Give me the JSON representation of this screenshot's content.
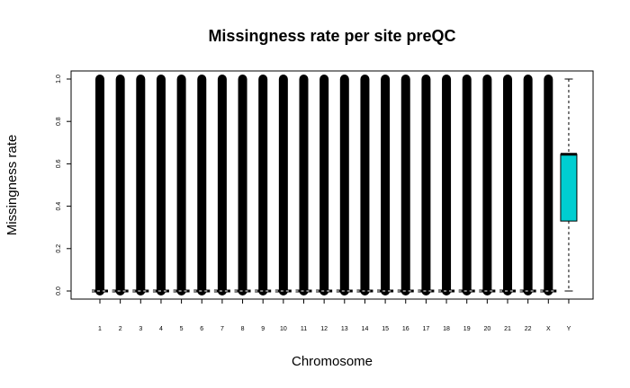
{
  "chart_data": {
    "type": "boxplot",
    "title": "Missingness rate per site preQC",
    "xlabel": "Chromosome",
    "ylabel": "Missingness rate",
    "categories": [
      "1",
      "2",
      "3",
      "4",
      "5",
      "6",
      "7",
      "8",
      "9",
      "10",
      "11",
      "12",
      "13",
      "14",
      "15",
      "16",
      "17",
      "18",
      "19",
      "20",
      "21",
      "22",
      "X",
      "Y"
    ],
    "yticks": [
      "0.0",
      "0.2",
      "0.4",
      "0.6",
      "0.8",
      "1.0"
    ],
    "ylim": [
      0,
      1
    ],
    "grid": false,
    "legend": "none",
    "colors": {
      "box_fill": "#00CED1",
      "points": "#000000",
      "axis": "#000000"
    },
    "boxes": [
      {
        "chrom": "1",
        "min": 0.0,
        "q1": 0.0,
        "median": 0.0,
        "q3": 0.0,
        "max": 0.0,
        "outliers_from": 0.0,
        "outliers_to": 1.0
      },
      {
        "chrom": "2",
        "min": 0.0,
        "q1": 0.0,
        "median": 0.0,
        "q3": 0.0,
        "max": 0.0,
        "outliers_from": 0.0,
        "outliers_to": 1.0
      },
      {
        "chrom": "3",
        "min": 0.0,
        "q1": 0.0,
        "median": 0.0,
        "q3": 0.0,
        "max": 0.0,
        "outliers_from": 0.0,
        "outliers_to": 1.0
      },
      {
        "chrom": "4",
        "min": 0.0,
        "q1": 0.0,
        "median": 0.0,
        "q3": 0.0,
        "max": 0.0,
        "outliers_from": 0.0,
        "outliers_to": 1.0
      },
      {
        "chrom": "5",
        "min": 0.0,
        "q1": 0.0,
        "median": 0.0,
        "q3": 0.0,
        "max": 0.0,
        "outliers_from": 0.0,
        "outliers_to": 1.0
      },
      {
        "chrom": "6",
        "min": 0.0,
        "q1": 0.0,
        "median": 0.0,
        "q3": 0.0,
        "max": 0.0,
        "outliers_from": 0.0,
        "outliers_to": 1.0
      },
      {
        "chrom": "7",
        "min": 0.0,
        "q1": 0.0,
        "median": 0.0,
        "q3": 0.0,
        "max": 0.0,
        "outliers_from": 0.0,
        "outliers_to": 1.0
      },
      {
        "chrom": "8",
        "min": 0.0,
        "q1": 0.0,
        "median": 0.0,
        "q3": 0.0,
        "max": 0.0,
        "outliers_from": 0.0,
        "outliers_to": 1.0
      },
      {
        "chrom": "9",
        "min": 0.0,
        "q1": 0.0,
        "median": 0.0,
        "q3": 0.0,
        "max": 0.0,
        "outliers_from": 0.0,
        "outliers_to": 1.0
      },
      {
        "chrom": "10",
        "min": 0.0,
        "q1": 0.0,
        "median": 0.0,
        "q3": 0.0,
        "max": 0.0,
        "outliers_from": 0.0,
        "outliers_to": 1.0
      },
      {
        "chrom": "11",
        "min": 0.0,
        "q1": 0.0,
        "median": 0.0,
        "q3": 0.0,
        "max": 0.0,
        "outliers_from": 0.0,
        "outliers_to": 1.0
      },
      {
        "chrom": "12",
        "min": 0.0,
        "q1": 0.0,
        "median": 0.0,
        "q3": 0.0,
        "max": 0.0,
        "outliers_from": 0.0,
        "outliers_to": 1.0
      },
      {
        "chrom": "13",
        "min": 0.0,
        "q1": 0.0,
        "median": 0.0,
        "q3": 0.0,
        "max": 0.0,
        "outliers_from": 0.0,
        "outliers_to": 1.0
      },
      {
        "chrom": "14",
        "min": 0.0,
        "q1": 0.0,
        "median": 0.0,
        "q3": 0.0,
        "max": 0.0,
        "outliers_from": 0.0,
        "outliers_to": 1.0
      },
      {
        "chrom": "15",
        "min": 0.0,
        "q1": 0.0,
        "median": 0.0,
        "q3": 0.0,
        "max": 0.0,
        "outliers_from": 0.0,
        "outliers_to": 1.0
      },
      {
        "chrom": "16",
        "min": 0.0,
        "q1": 0.0,
        "median": 0.0,
        "q3": 0.0,
        "max": 0.0,
        "outliers_from": 0.0,
        "outliers_to": 1.0
      },
      {
        "chrom": "17",
        "min": 0.0,
        "q1": 0.0,
        "median": 0.0,
        "q3": 0.0,
        "max": 0.0,
        "outliers_from": 0.0,
        "outliers_to": 1.0
      },
      {
        "chrom": "18",
        "min": 0.0,
        "q1": 0.0,
        "median": 0.0,
        "q3": 0.0,
        "max": 0.0,
        "outliers_from": 0.0,
        "outliers_to": 1.0
      },
      {
        "chrom": "19",
        "min": 0.0,
        "q1": 0.0,
        "median": 0.0,
        "q3": 0.0,
        "max": 0.0,
        "outliers_from": 0.0,
        "outliers_to": 1.0
      },
      {
        "chrom": "20",
        "min": 0.0,
        "q1": 0.0,
        "median": 0.0,
        "q3": 0.0,
        "max": 0.0,
        "outliers_from": 0.0,
        "outliers_to": 1.0
      },
      {
        "chrom": "21",
        "min": 0.0,
        "q1": 0.0,
        "median": 0.0,
        "q3": 0.0,
        "max": 0.0,
        "outliers_from": 0.0,
        "outliers_to": 1.0
      },
      {
        "chrom": "22",
        "min": 0.0,
        "q1": 0.0,
        "median": 0.0,
        "q3": 0.0,
        "max": 0.0,
        "outliers_from": 0.0,
        "outliers_to": 1.0
      },
      {
        "chrom": "X",
        "min": 0.0,
        "q1": 0.0,
        "median": 0.0,
        "q3": 0.0,
        "max": 0.0,
        "outliers_from": 0.0,
        "outliers_to": 1.0
      },
      {
        "chrom": "Y",
        "min": 0.0,
        "q1": 0.33,
        "median": 0.645,
        "q3": 0.645,
        "max": 1.0,
        "outliers_from": null,
        "outliers_to": null
      }
    ]
  }
}
